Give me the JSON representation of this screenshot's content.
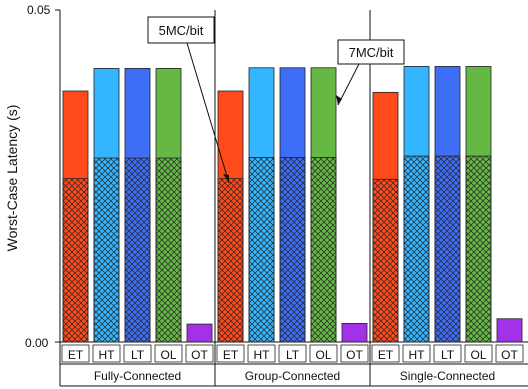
{
  "chart_data": {
    "type": "bar",
    "ylabel": "Worst-Case Latency (s)",
    "ylim": [
      0,
      0.05
    ],
    "yticks": [
      "0.00",
      "0.05"
    ],
    "groups": [
      {
        "name": "Fully-Connected",
        "categories": [
          "ET",
          "HT",
          "LT",
          "OL",
          "OT"
        ],
        "total": [
          0.0378,
          0.0412,
          0.0412,
          0.0412,
          0.0027
        ],
        "hatched": [
          0.0246,
          0.0277,
          0.0277,
          0.0277,
          0.0
        ]
      },
      {
        "name": "Group-Connected",
        "categories": [
          "ET",
          "HT",
          "LT",
          "OL",
          "OT"
        ],
        "total": [
          0.0378,
          0.0413,
          0.0413,
          0.0413,
          0.0028
        ],
        "hatched": [
          0.0246,
          0.0278,
          0.0278,
          0.0278,
          0.0
        ]
      },
      {
        "name": "Single-Connected",
        "categories": [
          "ET",
          "HT",
          "LT",
          "OL",
          "OT"
        ],
        "total": [
          0.0376,
          0.0415,
          0.0415,
          0.0415,
          0.0035
        ],
        "hatched": [
          0.0245,
          0.028,
          0.028,
          0.028,
          0.0
        ]
      }
    ],
    "colors": {
      "ET": "#ff4a1c",
      "HT": "#33b5ff",
      "LT": "#3d6ef5",
      "OL": "#66b845",
      "OT": "#a331e8"
    },
    "annotations": [
      {
        "text": "5MC/bit",
        "points_to": "hatched portion (Group-Connected ET)"
      },
      {
        "text": "7MC/bit",
        "points_to": "solid upper portion (Group-Connected OL)"
      }
    ],
    "legend": "none",
    "grid": false
  }
}
